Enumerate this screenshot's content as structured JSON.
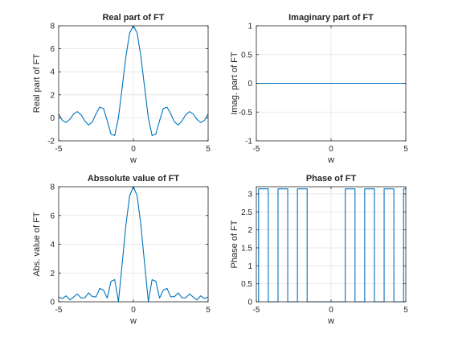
{
  "chart_data": [
    {
      "type": "line",
      "title": "Real part of FT",
      "xlabel": "w",
      "ylabel": "Real part of FT",
      "xlim": [
        -5,
        5
      ],
      "ylim": [
        -2,
        8
      ],
      "xticks": [
        "-5",
        "0",
        "5"
      ],
      "yticks": [
        "-2",
        "0",
        "2",
        "4",
        "6",
        "8"
      ],
      "grid": true,
      "series": [
        {
          "x": [
            -5,
            -4.75,
            -4.5,
            -4.25,
            -4,
            -3.75,
            -3.5,
            -3.25,
            -3,
            -2.75,
            -2.5,
            -2.25,
            -2,
            -1.75,
            -1.5,
            -1.25,
            -1,
            -0.75,
            -0.5,
            -0.25,
            0,
            0.25,
            0.5,
            0.75,
            1,
            1.25,
            1.5,
            1.75,
            2,
            2.25,
            2.5,
            2.75,
            3,
            3.25,
            3.5,
            3.75,
            4,
            4.25,
            4.5,
            4.75,
            5
          ],
          "y": [
            0.33,
            -0.23,
            -0.41,
            -0.13,
            0.33,
            0.54,
            0.27,
            -0.28,
            -0.62,
            -0.36,
            0.34,
            0.93,
            0.81,
            -0.26,
            -1.42,
            -1.54,
            0,
            2.65,
            5.34,
            7.37,
            8,
            7.37,
            5.34,
            2.65,
            0,
            -1.54,
            -1.42,
            -0.26,
            0.81,
            0.93,
            0.34,
            -0.36,
            -0.62,
            -0.28,
            0.27,
            0.54,
            0.33,
            -0.13,
            -0.41,
            -0.23,
            0.33
          ]
        }
      ]
    },
    {
      "type": "line",
      "title": "Imaginary part of FT",
      "xlabel": "w",
      "ylabel": "Imag. part of FT",
      "xlim": [
        -5,
        5
      ],
      "ylim": [
        -1,
        1
      ],
      "xticks": [
        "-5",
        "0",
        "5"
      ],
      "yticks": [
        "-1",
        "-0.5",
        "0",
        "0.5",
        "1"
      ],
      "grid": true,
      "series": [
        {
          "x": [
            -5,
            5
          ],
          "y": [
            0,
            0
          ]
        }
      ]
    },
    {
      "type": "line",
      "title": "Absolute value of FT",
      "display_title": "Abssolute value of FT",
      "xlabel": "w",
      "ylabel": "Abs. value of FT",
      "xlim": [
        -5,
        5
      ],
      "ylim": [
        0,
        8
      ],
      "xticks": [
        "-5",
        "0",
        "5"
      ],
      "yticks": [
        "0",
        "2",
        "4",
        "6",
        "8"
      ],
      "grid": true,
      "series": [
        {
          "x": [
            -5,
            -4.75,
            -4.5,
            -4.25,
            -4,
            -3.75,
            -3.5,
            -3.25,
            -3,
            -2.75,
            -2.5,
            -2.25,
            -2,
            -1.75,
            -1.5,
            -1.25,
            -1,
            -0.75,
            -0.5,
            -0.25,
            0,
            0.25,
            0.5,
            0.75,
            1,
            1.25,
            1.5,
            1.75,
            2,
            2.25,
            2.5,
            2.75,
            3,
            3.25,
            3.5,
            3.75,
            4,
            4.25,
            4.5,
            4.75,
            5
          ],
          "y": [
            0.33,
            0.23,
            0.41,
            0.13,
            0.33,
            0.54,
            0.27,
            0.28,
            0.62,
            0.36,
            0.34,
            0.93,
            0.81,
            0.26,
            1.42,
            1.54,
            0,
            2.65,
            5.34,
            7.37,
            8,
            7.37,
            5.34,
            2.65,
            0,
            1.54,
            1.42,
            0.26,
            0.81,
            0.93,
            0.34,
            0.36,
            0.62,
            0.28,
            0.27,
            0.54,
            0.33,
            0.13,
            0.41,
            0.23,
            0.33
          ]
        }
      ]
    },
    {
      "type": "line",
      "title": "Phase of FT",
      "xlabel": "w",
      "ylabel": "Phase of FT",
      "xlim": [
        -5,
        5
      ],
      "ylim": [
        0,
        3.2
      ],
      "xticks": [
        "-5",
        "0",
        "5"
      ],
      "yticks": [
        "0",
        "0.5",
        "1",
        "1.5",
        "2",
        "2.5",
        "3"
      ],
      "grid": true,
      "series": [
        {
          "x": [
            -5,
            -4.85,
            -4.85,
            -4.2,
            -4.2,
            -3.55,
            -3.55,
            -2.9,
            -2.9,
            -2.25,
            -2.25,
            -1.6,
            -1.6,
            -0.95,
            -0.95,
            0.95,
            0.95,
            1.6,
            1.6,
            2.25,
            2.25,
            2.9,
            2.9,
            3.55,
            3.55,
            4.2,
            4.2,
            4.85,
            4.85,
            5
          ],
          "y": [
            0,
            0,
            3.14,
            3.14,
            0,
            0,
            3.14,
            3.14,
            0,
            0,
            3.14,
            3.14,
            0,
            0,
            0,
            0,
            3.14,
            3.14,
            0,
            0,
            3.14,
            3.14,
            0,
            0,
            3.14,
            3.14,
            0,
            0,
            3.14,
            3.14
          ]
        }
      ]
    }
  ]
}
